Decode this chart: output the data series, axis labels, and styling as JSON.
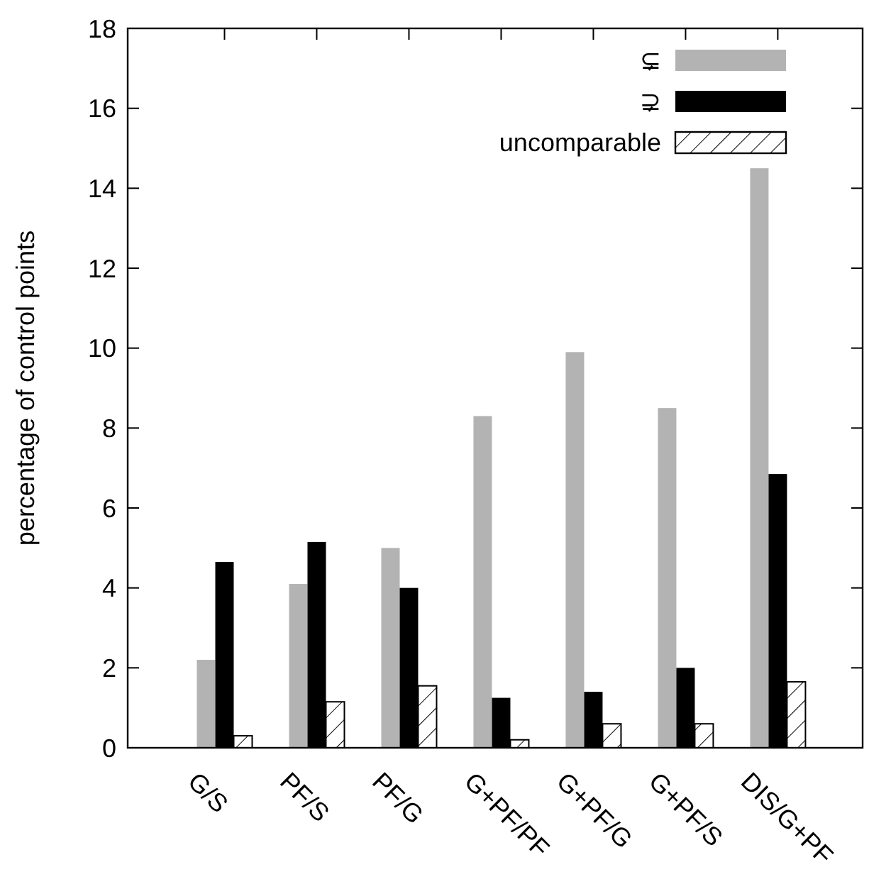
{
  "chart_data": {
    "type": "bar",
    "ylabel": "percentage of control points",
    "categories": [
      "G/S",
      "PF/S",
      "PF/G",
      "G+PF/PF",
      "G+PF/G",
      "G+PF/S",
      "DIS/G+PF"
    ],
    "series": [
      {
        "name": "⊊",
        "color": "#b3b3b3",
        "values": [
          2.2,
          4.1,
          5.0,
          8.3,
          9.9,
          8.5,
          14.5
        ]
      },
      {
        "name": "⊋",
        "color": "#000000",
        "values": [
          4.65,
          5.15,
          4.0,
          1.25,
          1.4,
          2.0,
          6.85
        ]
      },
      {
        "name": "uncomparable",
        "color": "#ffffff",
        "values": [
          0.3,
          1.15,
          1.55,
          0.2,
          0.6,
          0.6,
          1.65
        ]
      }
    ],
    "ylim": [
      0,
      18
    ],
    "yticks": [
      0,
      2,
      4,
      6,
      8,
      10,
      12,
      14,
      16,
      18
    ],
    "grid": false,
    "legend": "top right"
  }
}
